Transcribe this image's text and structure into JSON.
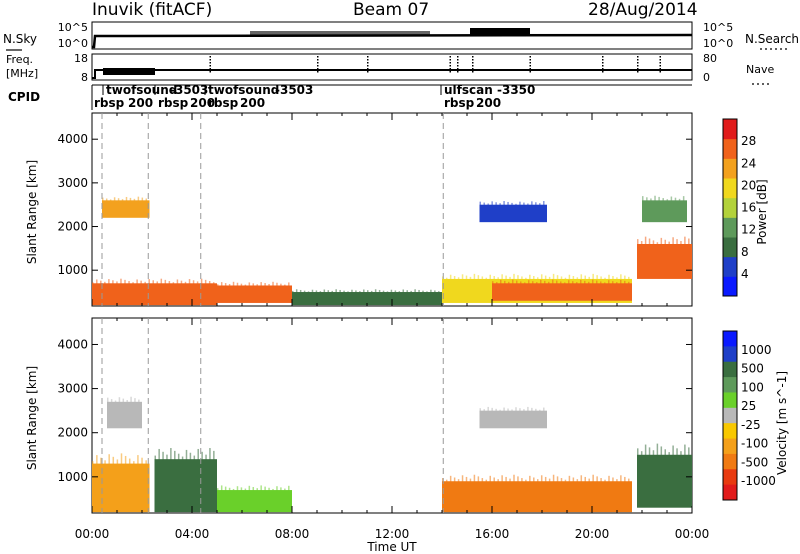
{
  "header": {
    "station": "Inuvik (fitACF)",
    "beam": "Beam 07",
    "date": "28/Aug/2014"
  },
  "noise_panel": {
    "left_label": "N.Sky",
    "right_label": "N.Search",
    "left_ticks": [
      "10^5",
      "10^0"
    ],
    "right_ticks": [
      "10^5",
      "10^0"
    ]
  },
  "freq_panel": {
    "left_label_line1": "Freq.",
    "left_label_line2": "[MHz]",
    "right_label": "Nave",
    "left_ticks": [
      "18",
      "8"
    ],
    "right_ticks": [
      "80",
      "0"
    ]
  },
  "cpid": {
    "label": "CPID",
    "modes": [
      {
        "name": "twofsound",
        "cpid": "-3503"
      },
      {
        "name": "twofsound",
        "cpid": "-3503"
      },
      {
        "name": "ulfscan",
        "cpid": "-3350"
      }
    ],
    "rbsp_labels": [
      "rbsp",
      "200",
      "rbsp",
      "200",
      "rbsp",
      "200",
      "rbsp",
      "200"
    ]
  },
  "chart_data": [
    {
      "type": "heatmap",
      "name": "power",
      "ylabel": "Slant Range [km]",
      "yticks": [
        1000,
        2000,
        3000,
        4000
      ],
      "ylim": [
        180,
        4600
      ],
      "xlim_hours": [
        0,
        24
      ],
      "colorbar": {
        "label": "Power [dB]",
        "ticks": [
          "4",
          "8",
          "12",
          "16",
          "20",
          "24",
          "28"
        ],
        "colors": [
          "#0a1aff",
          "#1f3fc8",
          "#3a6e40",
          "#5e9a5b",
          "#b3d23b",
          "#f0d81e",
          "#f3a11e",
          "#f0621b",
          "#e11b1b"
        ]
      },
      "regions_hours_km_db": [
        {
          "t": [
            0.0,
            5.0
          ],
          "r": [
            200,
            700
          ],
          "db": 26
        },
        {
          "t": [
            5.0,
            8.0
          ],
          "r": [
            250,
            650
          ],
          "db": 28
        },
        {
          "t": [
            8.0,
            14.0
          ],
          "r": [
            200,
            500
          ],
          "db": 10
        },
        {
          "t": [
            14.0,
            21.6
          ],
          "r": [
            250,
            800
          ],
          "db": 18
        },
        {
          "t": [
            16.0,
            21.6
          ],
          "r": [
            300,
            700
          ],
          "db": 28
        },
        {
          "t": [
            21.8,
            24.0
          ],
          "r": [
            800,
            1600
          ],
          "db": 26
        },
        {
          "t": [
            0.4,
            2.3
          ],
          "r": [
            2200,
            2600
          ],
          "db": 22
        },
        {
          "t": [
            15.5,
            18.2
          ],
          "r": [
            2100,
            2500
          ],
          "db": 6
        },
        {
          "t": [
            22.0,
            23.8
          ],
          "r": [
            2100,
            2600
          ],
          "db": 14
        }
      ]
    },
    {
      "type": "heatmap",
      "name": "velocity",
      "ylabel": "Slant Range [km]",
      "yticks": [
        1000,
        2000,
        3000,
        4000
      ],
      "ylim": [
        180,
        4600
      ],
      "xlim_hours": [
        0,
        24
      ],
      "xlabel": "Time UT",
      "xticks": [
        "00:00",
        "04:00",
        "08:00",
        "12:00",
        "16:00",
        "20:00",
        "00:00"
      ],
      "colorbar": {
        "label": "Velocity [m s^-1]",
        "ticks": [
          "1000",
          "500",
          "100",
          "25",
          "-25",
          "-100",
          "-500",
          "-1000"
        ],
        "colors": [
          "#0a1aff",
          "#1f3fc8",
          "#3a6e40",
          "#5e9a5b",
          "#6ad02a",
          "#b8b8b8",
          "#f8c800",
          "#f4a01a",
          "#f07a12",
          "#e83a10",
          "#e11b1b"
        ]
      },
      "regions_hours_km_vel": [
        {
          "t": [
            0.0,
            2.3
          ],
          "r": [
            200,
            1300
          ],
          "v": -200
        },
        {
          "t": [
            2.5,
            5.0
          ],
          "r": [
            200,
            1400
          ],
          "v": 150
        },
        {
          "t": [
            5.0,
            8.0
          ],
          "r": [
            200,
            700
          ],
          "v": 60
        },
        {
          "t": [
            14.0,
            21.6
          ],
          "r": [
            200,
            900
          ],
          "v": -300
        },
        {
          "t": [
            21.8,
            24.0
          ],
          "r": [
            300,
            1500
          ],
          "v": 150
        },
        {
          "t": [
            15.5,
            18.2
          ],
          "r": [
            2100,
            2500
          ],
          "v": 0
        },
        {
          "t": [
            0.6,
            2.0
          ],
          "r": [
            2100,
            2700
          ],
          "v": 0
        }
      ]
    }
  ]
}
